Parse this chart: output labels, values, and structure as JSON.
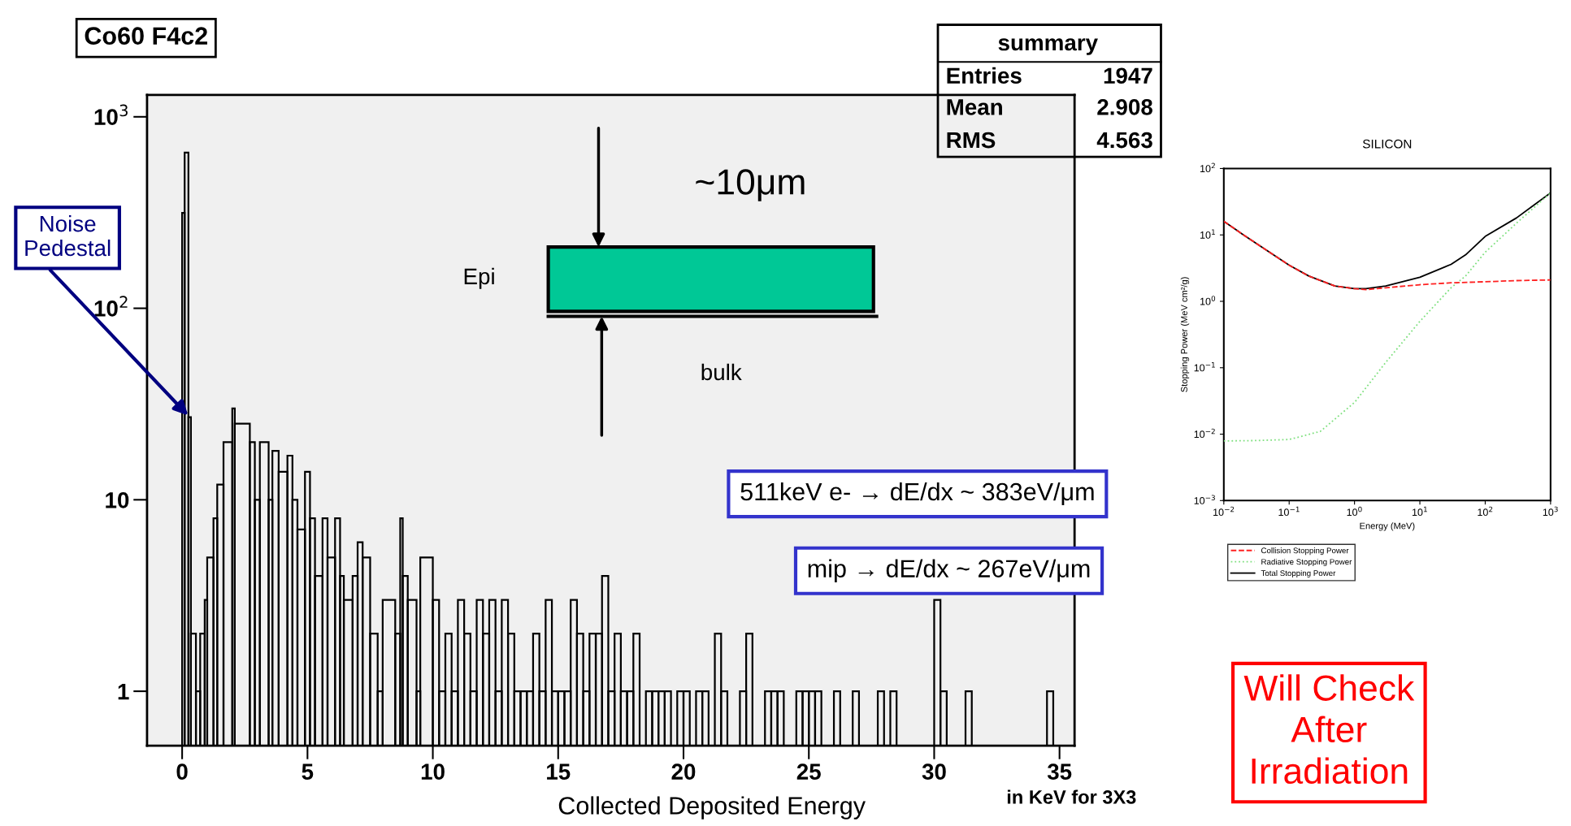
{
  "chart_data": [
    {
      "type": "histogram",
      "title": "Co60 F4c2",
      "xlabel": "Collected Deposited Energy",
      "color": "#000000",
      "bins": [
        0,
        0.1,
        0.25,
        0.35,
        0.55,
        0.72,
        0.9,
        1.0,
        1.25,
        1.4,
        1.65,
        2.0,
        2.1,
        2.7,
        2.9,
        3.1,
        3.45,
        3.6,
        3.85,
        4.2,
        4.4,
        4.6,
        4.9,
        5.1,
        5.3,
        5.6,
        5.8,
        6.1,
        6.3,
        6.45,
        6.8,
        7.0,
        7.2,
        7.5,
        7.8,
        8.0,
        8.5,
        8.7,
        8.8,
        9.0,
        9.35,
        9.5,
        10.0,
        10.25,
        10.5,
        10.75,
        11.0,
        11.25,
        11.5,
        11.75,
        12.0,
        12.25,
        12.5,
        12.75,
        13.0,
        13.25,
        13.5,
        13.75,
        14.0,
        14.25,
        14.5,
        14.75,
        15.0,
        15.25,
        15.5,
        15.75,
        16.0,
        16.25,
        16.5,
        16.75,
        17.0,
        17.25,
        17.5,
        17.75,
        18.0,
        18.25,
        18.5,
        18.75,
        19.0,
        19.25,
        19.5,
        19.75,
        20.0,
        20.25,
        20.5,
        20.75,
        21.0,
        21.25,
        21.5,
        21.75,
        22.25,
        22.5,
        22.75,
        23.25,
        23.5,
        23.75,
        24.0,
        24.5,
        24.75,
        25.0,
        25.25,
        25.5,
        26.0,
        26.25,
        26.75,
        27.0,
        27.75,
        28.0,
        28.25,
        28.5,
        30.0,
        30.25,
        30.5,
        31.25,
        31.5,
        34.5,
        34.75
      ],
      "values": [
        315,
        650,
        27,
        2,
        1,
        2,
        3,
        5,
        8,
        12,
        20,
        30,
        25,
        20,
        10,
        20,
        10,
        18,
        14,
        17,
        10,
        7,
        14,
        8,
        4,
        8,
        5,
        8,
        4,
        3,
        4,
        6,
        5,
        2,
        1,
        3,
        2,
        8,
        4,
        3,
        1,
        5,
        3,
        1,
        2,
        1,
        3,
        2,
        1,
        3,
        2,
        3,
        1,
        3,
        2,
        1,
        1,
        1,
        2,
        1,
        3,
        1,
        1,
        1,
        3,
        2,
        1,
        2,
        2,
        4,
        1,
        2,
        1,
        1,
        2,
        null,
        1,
        1,
        1,
        1,
        null,
        1,
        1,
        null,
        1,
        1,
        null,
        2,
        1,
        null,
        1,
        2,
        null,
        1,
        1,
        1,
        null,
        1,
        1,
        1,
        1,
        null,
        1,
        null,
        1,
        null,
        1,
        null,
        1,
        null,
        3,
        1,
        null,
        1,
        null,
        1
      ],
      "xlim": [
        -1.4,
        35.6
      ],
      "ylim": [
        0.52,
        1300
      ],
      "log": "y",
      "xticks": [
        0,
        5,
        10,
        15,
        20,
        25,
        30,
        35
      ],
      "yticks": [
        {
          "value": 1,
          "label": "1"
        },
        {
          "value": 10,
          "label": "10"
        },
        {
          "value": 100,
          "label": "10$^{2}$"
        },
        {
          "value": 1000,
          "label": "10$^{3}$"
        }
      ],
      "annotations": [
        {
          "text": "Noise\nPedestal",
          "x": 0.3,
          "y": 27
        },
        "~10μm",
        "Epi",
        "bulk",
        "511keV e- → dE/dx ~ 383eV/μm",
        "mip → dE/dx ~ 267eV/μm",
        "summary",
        "Entries",
        "1947",
        "Mean",
        "2.908",
        "RMS",
        "4.563",
        "in KeV for 3X3",
        "Will Check\nAfter\nIrradiation"
      ]
    },
    {
      "type": "line",
      "title": "SILICON",
      "xlabel": "Energy (MeV)",
      "ylabel": "Stopping Power (MeV cm²/g)",
      "log": "xy",
      "legend": "bottom",
      "xlim": [
        0.01,
        1000
      ],
      "ylim": [
        0.001,
        100
      ],
      "xticks": [
        {
          "value": 0.01,
          "label": "10$^{−2}$"
        },
        {
          "value": 0.1,
          "label": "10$^{−1}$"
        },
        {
          "value": 1,
          "label": "10$^{0}$"
        },
        {
          "value": 10,
          "label": "10$^{1}$"
        },
        {
          "value": 100,
          "label": "10$^{2}$"
        },
        {
          "value": 1000,
          "label": "10$^{3}$"
        }
      ],
      "yticks": [
        {
          "value": 0.001,
          "label": "10$^{−3}$"
        },
        {
          "value": 0.01,
          "label": "10$^{−2}$"
        },
        {
          "value": 0.1,
          "label": "10$^{−1}$"
        },
        {
          "value": 1,
          "label": "10$^{0}$"
        },
        {
          "value": 10,
          "label": "10$^{1}$"
        },
        {
          "value": 100,
          "label": "10$^{2}$"
        }
      ],
      "series": [
        {
          "name": "Collision Stopping Power",
          "color": "#ff2020",
          "line_style": "dashed",
          "x": [
            0.01,
            0.02,
            0.05,
            0.1,
            0.2,
            0.5,
            1,
            1.5,
            3,
            10,
            30,
            100,
            300,
            1000
          ],
          "values": [
            16,
            10,
            5.5,
            3.5,
            2.4,
            1.7,
            1.55,
            1.5,
            1.6,
            1.78,
            1.9,
            1.97,
            2.05,
            2.1
          ]
        },
        {
          "name": "Radiative Stopping Power",
          "color": "#80e080",
          "line_style": "dotted",
          "x": [
            0.01,
            0.03,
            0.1,
            0.3,
            1,
            3,
            10,
            30,
            50,
            100,
            300,
            1000
          ],
          "values": [
            0.0079,
            0.008,
            0.0083,
            0.011,
            0.03,
            0.12,
            0.5,
            1.6,
            2.4,
            5.5,
            15,
            43
          ]
        },
        {
          "name": "Total Stopping Power",
          "color": "#000000",
          "line_style": "solid",
          "x": [
            0.01,
            0.02,
            0.05,
            0.1,
            0.2,
            0.5,
            1,
            1.5,
            3,
            10,
            30,
            50,
            100,
            300,
            1000
          ],
          "values": [
            16,
            10,
            5.5,
            3.5,
            2.4,
            1.7,
            1.55,
            1.55,
            1.7,
            2.3,
            3.6,
            5,
            9.5,
            18,
            43
          ]
        }
      ]
    }
  ]
}
